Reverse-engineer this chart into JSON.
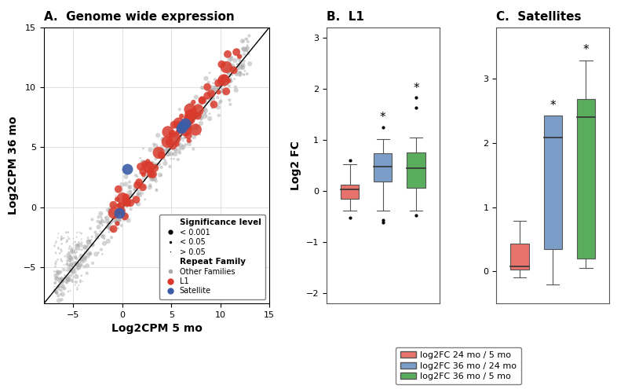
{
  "title_A": "A.  Genome wide expression",
  "title_B": "B.  L1",
  "title_C": "C.  Satellites",
  "xlabel_A": "Log2CPM 5 mo",
  "ylabel_A": "Log2CPM 36 mo",
  "ylabel_BC": "Log2 FC",
  "xlim_A": [
    -8,
    15
  ],
  "ylim_A": [
    -8,
    15
  ],
  "xticks_A": [
    -5,
    0,
    5,
    10,
    15
  ],
  "yticks_A": [
    -5,
    0,
    5,
    10,
    15
  ],
  "ylim_B": [
    -2.2,
    3.2
  ],
  "yticks_B": [
    -2,
    -1,
    0,
    1,
    2,
    3
  ],
  "ylim_C": [
    -0.5,
    3.8
  ],
  "yticks_C": [
    0,
    1,
    2,
    3
  ],
  "colors": {
    "salmon": "#E8736C",
    "steelblue": "#7B9EC9",
    "green": "#5BAD5E",
    "gray_other": "#AAAAAA",
    "red_L1": "#D93A2C",
    "blue_sat": "#3B5DA8"
  },
  "L1_box": {
    "salmon": {
      "q1": -0.15,
      "median": 0.03,
      "q3": 0.12,
      "whislo": -0.38,
      "whishi": 0.52,
      "fliers": [
        0.6,
        -0.52
      ]
    },
    "steelblue": {
      "q1": 0.18,
      "median": 0.47,
      "q3": 0.73,
      "whislo": -0.38,
      "whishi": 1.02,
      "fliers": [
        1.25,
        -0.57,
        -0.62
      ]
    },
    "green": {
      "q1": 0.06,
      "median": 0.45,
      "q3": 0.75,
      "whislo": -0.38,
      "whishi": 1.05,
      "fliers": [
        1.62,
        1.82,
        -0.47
      ]
    }
  },
  "L1_stars": [
    null,
    "*",
    "*"
  ],
  "Sat_box": {
    "salmon": {
      "q1": 0.03,
      "median": 0.08,
      "q3": 0.43,
      "whislo": -0.1,
      "whishi": 0.78,
      "fliers": []
    },
    "steelblue": {
      "q1": 0.35,
      "median": 2.08,
      "q3": 2.42,
      "whislo": -0.2,
      "whishi": 2.42,
      "fliers": []
    },
    "green": {
      "q1": 0.2,
      "median": 2.4,
      "q3": 2.68,
      "whislo": 0.05,
      "whishi": 3.28,
      "fliers": []
    }
  },
  "Sat_stars": [
    null,
    "*",
    "*"
  ],
  "scatter_seed": 42,
  "n_gray": 600,
  "n_red": 80,
  "n_blue": 5
}
